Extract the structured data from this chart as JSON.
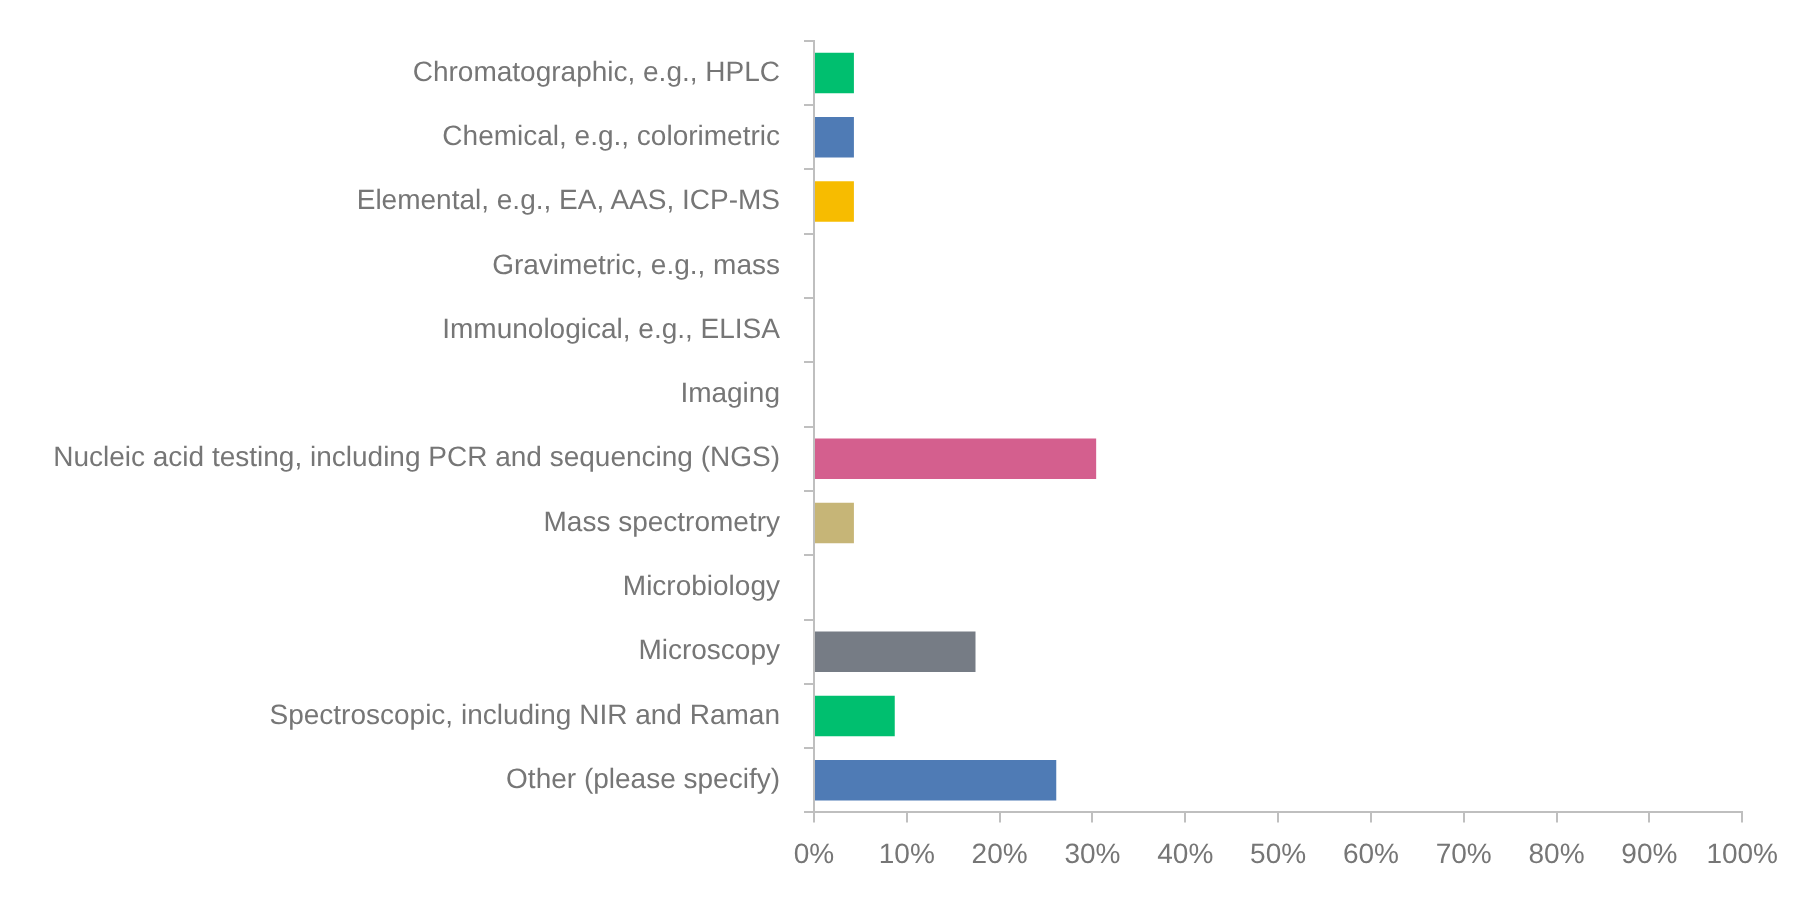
{
  "chart_data": {
    "type": "bar",
    "orientation": "horizontal",
    "categories": [
      "Chromatographic, e.g., HPLC",
      "Chemical, e.g., colorimetric",
      "Elemental, e.g., EA, AAS, ICP-MS",
      "Gravimetric, e.g., mass",
      "Immunological, e.g., ELISA",
      "Imaging",
      "Nucleic acid testing, including PCR and sequencing (NGS)",
      "Mass spectrometry",
      "Microbiology",
      "Microscopy",
      "Spectroscopic, including NIR and Raman",
      "Other (please specify)"
    ],
    "values": [
      4.3,
      4.3,
      4.3,
      0,
      0,
      0,
      30.4,
      4.3,
      0,
      17.4,
      8.7,
      26.1
    ],
    "colors": [
      "#00bf6f",
      "#4f7bb5",
      "#f7bc00",
      "#4f7bb5",
      "#4f7bb5",
      "#4f7bb5",
      "#d45f8e",
      "#c6b577",
      "#4f7bb5",
      "#767c85",
      "#00bf6f",
      "#4f7bb5"
    ],
    "xlim": [
      0,
      100
    ],
    "xticks": [
      {
        "value": 0,
        "label": "0%"
      },
      {
        "value": 10,
        "label": "10%"
      },
      {
        "value": 20,
        "label": "20%"
      },
      {
        "value": 30,
        "label": "30%"
      },
      {
        "value": 40,
        "label": "40%"
      },
      {
        "value": 50,
        "label": "50%"
      },
      {
        "value": 60,
        "label": "60%"
      },
      {
        "value": 70,
        "label": "70%"
      },
      {
        "value": 80,
        "label": "80%"
      },
      {
        "value": 90,
        "label": "90%"
      },
      {
        "value": 100,
        "label": "100%"
      }
    ],
    "grid": false,
    "legend": false
  }
}
